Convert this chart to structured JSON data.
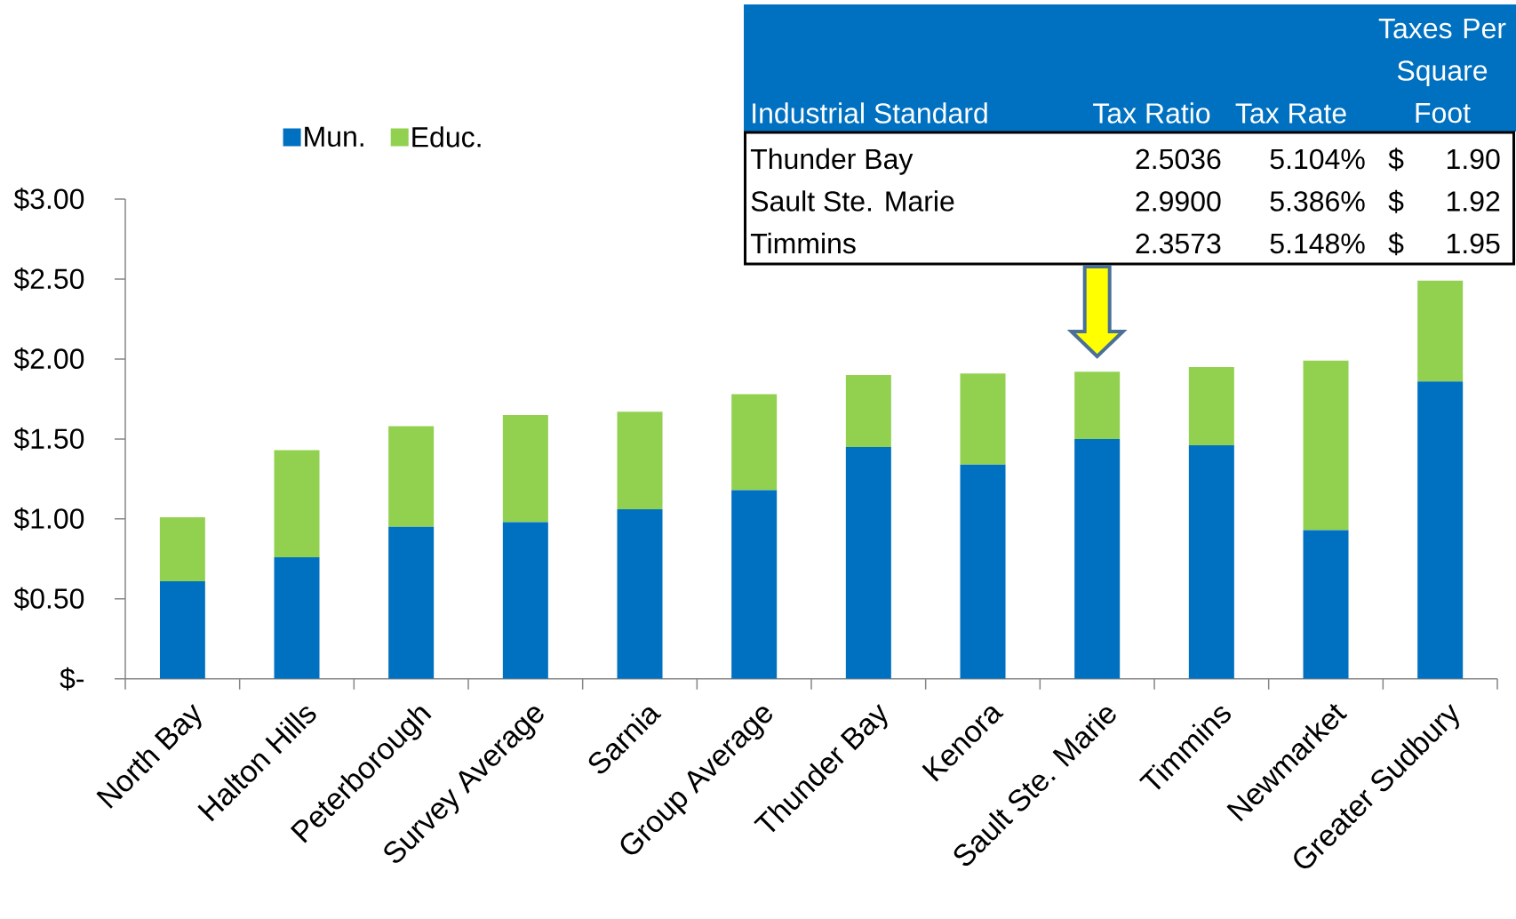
{
  "chart_data": {
    "type": "bar",
    "stacked": true,
    "categories": [
      "North Bay",
      "Halton Hills",
      "Peterborough",
      "Survey Average",
      "Sarnia",
      "Group Average",
      "Thunder Bay",
      "Kenora",
      "Sault Ste. Marie",
      "Timmins",
      "Newmarket",
      "Greater Sudbury"
    ],
    "series": [
      {
        "name": "Mun.",
        "color": "#0070c0",
        "values": [
          0.61,
          0.76,
          0.95,
          0.98,
          1.06,
          1.18,
          1.45,
          1.34,
          1.5,
          1.46,
          0.93,
          1.86
        ]
      },
      {
        "name": "Educ.",
        "color": "#92d050",
        "values": [
          0.4,
          0.67,
          0.63,
          0.67,
          0.61,
          0.6,
          0.45,
          0.57,
          0.42,
          0.49,
          1.06,
          0.63
        ]
      }
    ],
    "ylim": [
      0,
      3
    ],
    "yticks": [
      {
        "value": 0,
        "label": "$-"
      },
      {
        "value": 0.5,
        "label": "$0.50"
      },
      {
        "value": 1,
        "label": "$1.00"
      },
      {
        "value": 1.5,
        "label": "$1.50"
      },
      {
        "value": 2,
        "label": "$2.00"
      },
      {
        "value": 2.5,
        "label": "$2.50"
      },
      {
        "value": 3,
        "label": "$3.00"
      }
    ],
    "legend": "top left",
    "annotations": [
      "Industrial Standard",
      "Tax Ratio",
      "Tax Rate",
      "Taxes Per Square Foot",
      "Thunder Bay",
      "2.5036",
      "5.104%",
      "$",
      "1.90",
      "Sault Ste. Marie",
      "2.9900",
      "5.386%",
      "$",
      "1.92",
      "Timmins",
      "2.3573",
      "5.148%",
      "$",
      "1.95"
    ]
  }
}
